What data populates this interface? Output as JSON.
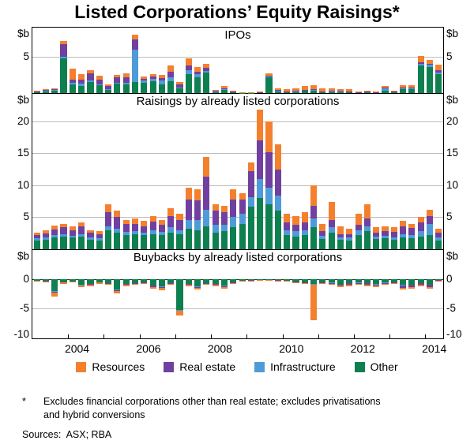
{
  "title": "Listed Corporations’ Equity Raisings*",
  "unit_label": "$b",
  "legend": [
    {
      "label": "Resources",
      "key": "resources"
    },
    {
      "label": "Real estate",
      "key": "real_estate"
    },
    {
      "label": "Infrastructure",
      "key": "infrastructure"
    },
    {
      "label": "Other",
      "key": "other"
    }
  ],
  "footnote_marker": "*",
  "footnote_text": "Excludes financial corporations other than real estate; excludes privatisations and hybrid conversions",
  "sources": "Sources:  ASX; RBA",
  "chart_data": {
    "type": "bar",
    "stacked": true,
    "frequency": "quarterly",
    "start_year": 2003,
    "x_tick_labels": [
      "2004",
      "2006",
      "2008",
      "2010",
      "2012",
      "2014"
    ],
    "colors": {
      "resources": "#F4802E",
      "real_estate": "#7040A0",
      "infrastructure": "#4F9BD9",
      "other": "#0E8050"
    },
    "quarters": [
      "2003Q1",
      "2003Q2",
      "2003Q3",
      "2003Q4",
      "2004Q1",
      "2004Q2",
      "2004Q3",
      "2004Q4",
      "2005Q1",
      "2005Q2",
      "2005Q3",
      "2005Q4",
      "2006Q1",
      "2006Q2",
      "2006Q3",
      "2006Q4",
      "2007Q1",
      "2007Q2",
      "2007Q3",
      "2007Q4",
      "2008Q1",
      "2008Q2",
      "2008Q3",
      "2008Q4",
      "2009Q1",
      "2009Q2",
      "2009Q3",
      "2009Q4",
      "2010Q1",
      "2010Q2",
      "2010Q3",
      "2010Q4",
      "2011Q1",
      "2011Q2",
      "2011Q3",
      "2011Q4",
      "2012Q1",
      "2012Q2",
      "2012Q3",
      "2012Q4",
      "2013Q1",
      "2013Q2",
      "2013Q3",
      "2013Q4",
      "2014Q1",
      "2014Q2"
    ],
    "panels": [
      {
        "title": "IPOs",
        "ymin": 0,
        "ymax": 9.1,
        "ticks": [
          5
        ],
        "series": [
          {
            "name": "Other",
            "key": "other",
            "values": [
              0.15,
              0.3,
              0.4,
              4.8,
              1.2,
              1.0,
              1.5,
              1.1,
              0.5,
              1.3,
              1.2,
              1.5,
              1.4,
              1.6,
              1.2,
              1.6,
              0.7,
              2.6,
              2.2,
              2.8,
              0.2,
              0.5,
              0.15,
              0.05,
              0.05,
              0.1,
              2.2,
              0.3,
              0.15,
              0.2,
              0.3,
              0.3,
              0.15,
              0.2,
              0.2,
              0.15,
              0.1,
              0.15,
              0.1,
              0.3,
              0.15,
              0.6,
              0.5,
              3.8,
              3.6,
              2.6
            ]
          },
          {
            "name": "Infrastructure",
            "key": "infrastructure",
            "values": [
              0,
              0.05,
              0.05,
              0.2,
              0.2,
              0.3,
              0.3,
              0.1,
              0.1,
              0.1,
              0.2,
              4.5,
              0.3,
              0.4,
              0.5,
              0.6,
              0.1,
              0.6,
              0.4,
              0.3,
              0.05,
              0.05,
              0,
              0,
              0,
              0,
              0.1,
              0.05,
              0.05,
              0.05,
              0.1,
              0.2,
              0.05,
              0.05,
              0.05,
              0.05,
              0,
              0.05,
              0,
              0.4,
              0.05,
              0.1,
              0.2,
              0.3,
              0.3,
              0.3
            ]
          },
          {
            "name": "Real estate",
            "key": "real_estate",
            "values": [
              0.05,
              0.1,
              0.1,
              1.8,
              0.5,
              0.6,
              0.9,
              0.7,
              0.4,
              0.8,
              0.8,
              1.5,
              0.3,
              0.3,
              0.4,
              0.8,
              0.4,
              0.6,
              0.4,
              0.4,
              0.05,
              0.1,
              0.05,
              0,
              0,
              0.05,
              0.1,
              0.1,
              0.05,
              0.1,
              0.05,
              0.05,
              0.05,
              0.05,
              0.05,
              0.05,
              0.02,
              0.02,
              0.02,
              0.05,
              0.02,
              0.05,
              0.1,
              0.2,
              0.2,
              0.3
            ]
          },
          {
            "name": "Resources",
            "key": "resources",
            "values": [
              0.1,
              0.15,
              0.15,
              0.4,
              1.5,
              0.7,
              0.5,
              0.5,
              0.2,
              0.3,
              0.5,
              0.6,
              0.3,
              0.3,
              0.4,
              0.8,
              0.3,
              1.0,
              0.6,
              0.6,
              0.1,
              0.3,
              0.1,
              0.05,
              0.05,
              0.05,
              0.3,
              0.2,
              0.3,
              0.3,
              0.5,
              0.6,
              0.4,
              0.4,
              0.3,
              0.25,
              0.1,
              0.1,
              0.1,
              0.2,
              0.1,
              0.3,
              0.3,
              0.8,
              0.5,
              0.7
            ]
          }
        ]
      },
      {
        "title": "Raisings by already listed corporations",
        "ymin": 0,
        "ymax": 24.3,
        "ticks": [
          5,
          10,
          15,
          20
        ],
        "series": [
          {
            "name": "Other",
            "key": "other",
            "values": [
              1.4,
              1.5,
              1.8,
              2.0,
              1.8,
              2.0,
              1.5,
              1.4,
              3.0,
              2.6,
              2.2,
              2.4,
              2.2,
              2.4,
              2.2,
              2.6,
              2.4,
              3.2,
              3.0,
              3.6,
              2.6,
              2.8,
              3.4,
              4.0,
              6.6,
              8.0,
              7.0,
              6.0,
              2.2,
              2.0,
              2.2,
              3.4,
              1.6,
              2.6,
              1.5,
              1.4,
              2.2,
              2.8,
              1.6,
              1.7,
              1.5,
              1.8,
              1.7,
              2.0,
              2.2,
              1.4
            ]
          },
          {
            "name": "Infrastructure",
            "key": "infrastructure",
            "values": [
              0.3,
              0.3,
              0.4,
              0.4,
              0.3,
              0.4,
              0.3,
              0.3,
              0.6,
              0.6,
              0.5,
              0.4,
              0.4,
              0.5,
              0.5,
              0.8,
              0.6,
              1.4,
              1.6,
              2.6,
              1.2,
              1.0,
              1.6,
              1.6,
              1.6,
              3.0,
              2.6,
              2.4,
              0.8,
              0.8,
              0.8,
              1.4,
              0.5,
              0.8,
              0.4,
              0.4,
              0.8,
              0.8,
              0.4,
              0.4,
              0.4,
              0.6,
              0.5,
              0.8,
              1.8,
              0.5
            ]
          },
          {
            "name": "Real estate",
            "key": "real_estate",
            "values": [
              0.5,
              0.7,
              0.9,
              1.0,
              0.9,
              1.2,
              0.8,
              0.7,
              2.2,
              1.8,
              1.2,
              1.2,
              1.0,
              1.4,
              1.1,
              1.8,
              1.6,
              3.2,
              3.0,
              5.2,
              2.2,
              2.0,
              2.8,
              2.2,
              4.0,
              6.0,
              5.6,
              4.0,
              1.2,
              1.0,
              1.2,
              2.0,
              0.7,
              1.2,
              0.5,
              0.5,
              0.8,
              1.2,
              0.6,
              0.7,
              0.8,
              1.2,
              1.1,
              1.4,
              1.2,
              0.7
            ]
          },
          {
            "name": "Resources",
            "key": "resources",
            "values": [
              0.4,
              0.5,
              0.6,
              0.6,
              0.6,
              0.6,
              0.4,
              0.4,
              1.2,
              1.0,
              0.7,
              0.8,
              0.8,
              0.9,
              0.8,
              1.2,
              1.0,
              1.8,
              1.8,
              3.0,
              1.0,
              1.0,
              1.6,
              1.0,
              1.4,
              4.8,
              4.8,
              4.0,
              1.4,
              1.4,
              1.6,
              3.2,
              1.2,
              2.8,
              1.2,
              0.9,
              1.8,
              2.2,
              0.8,
              0.8,
              0.7,
              0.8,
              0.7,
              0.8,
              1.0,
              0.6
            ]
          }
        ]
      },
      {
        "title": "Buybacks by already listed corporations",
        "ymin": -10,
        "ymax": 4.9,
        "ticks": [
          0,
          -5,
          -10
        ],
        "series": [
          {
            "name": "Other",
            "key": "other",
            "values": [
              -0.3,
              -0.35,
              -2.0,
              -0.5,
              -0.4,
              -1.0,
              -0.8,
              -0.5,
              -0.7,
              -1.8,
              -0.8,
              -0.7,
              -0.5,
              -1.1,
              -1.2,
              -0.7,
              -5.2,
              -0.8,
              -1.2,
              -0.7,
              -0.8,
              -1.1,
              -0.5,
              -0.3,
              -0.2,
              -0.12,
              -0.12,
              -0.2,
              -0.25,
              -0.4,
              -0.5,
              -0.8,
              -0.5,
              -0.6,
              -0.9,
              -0.7,
              -0.6,
              -0.7,
              -0.8,
              -0.6,
              -0.5,
              -1.0,
              -0.9,
              -0.7,
              -0.9,
              -0.2
            ]
          },
          {
            "name": "Infrastructure",
            "key": "infrastructure",
            "values": [
              0,
              0,
              -0.1,
              0,
              0,
              -0.05,
              -0.05,
              0,
              -0.05,
              -0.1,
              -0.05,
              -0.05,
              -0.05,
              -0.05,
              -0.1,
              -0.05,
              -0.1,
              -0.05,
              -0.1,
              -0.05,
              -0.05,
              -0.1,
              -0.05,
              0,
              0,
              0,
              0,
              0,
              0,
              -0.05,
              -0.05,
              -0.1,
              -0.05,
              -0.05,
              -0.1,
              -0.05,
              -0.05,
              -0.05,
              -0.1,
              -0.05,
              -0.05,
              -0.1,
              -0.1,
              -0.05,
              -0.1,
              0
            ]
          },
          {
            "name": "Real estate",
            "key": "real_estate",
            "values": [
              -0.02,
              -0.03,
              -0.2,
              -0.1,
              -0.05,
              -0.1,
              -0.1,
              -0.1,
              -0.05,
              -0.1,
              -0.1,
              -0.05,
              -0.1,
              -0.15,
              -0.2,
              -0.1,
              -0.1,
              -0.1,
              -0.2,
              -0.1,
              -0.15,
              -0.2,
              -0.1,
              -0.05,
              -0.05,
              -0.03,
              -0.03,
              -0.05,
              -0.05,
              -0.05,
              -0.1,
              -0.1,
              -0.1,
              -0.15,
              -0.15,
              -0.2,
              -0.15,
              -0.2,
              -0.2,
              -0.15,
              -0.1,
              -0.4,
              -0.3,
              -0.2,
              -0.3,
              -0.05
            ]
          },
          {
            "name": "Resources",
            "key": "resources",
            "values": [
              -0.08,
              -0.12,
              -0.7,
              -0.2,
              -0.15,
              -0.25,
              -0.25,
              -0.2,
              -0.2,
              -0.4,
              -0.25,
              -0.2,
              -0.15,
              -0.3,
              -0.4,
              -0.15,
              -0.8,
              -0.25,
              -0.3,
              -0.15,
              -0.2,
              -0.2,
              -0.15,
              -0.05,
              -0.05,
              -0.05,
              -0.05,
              -0.05,
              -0.05,
              -0.1,
              -0.15,
              -6.0,
              -0.15,
              -0.2,
              -0.25,
              -0.25,
              -0.2,
              -0.25,
              -0.3,
              -0.2,
              -0.15,
              -0.3,
              -0.3,
              -0.25,
              -0.3,
              -0.05
            ]
          }
        ]
      }
    ]
  }
}
